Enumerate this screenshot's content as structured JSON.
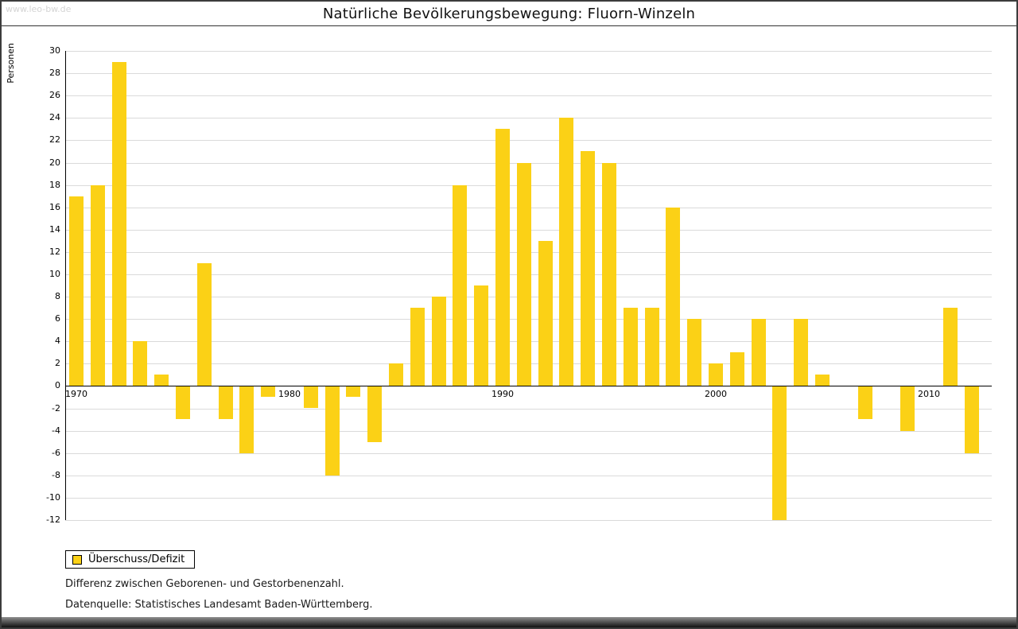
{
  "watermark": "www.leo-bw.de",
  "title": "Natürliche Bevölkerungsbewegung: Fluorn-Winzeln",
  "footnotes": [
    "Differenz zwischen Geborenen- und Gestorbenenzahl.",
    "Datenquelle: Statistisches Landesamt Baden-Württemberg."
  ],
  "chart_data": {
    "type": "bar",
    "title": "Natürliche Bevölkerungsbewegung: Fluorn-Winzeln",
    "xlabel": "",
    "ylabel": "Personen",
    "ylim": [
      -12,
      30
    ],
    "ytick_step": 2,
    "grid": true,
    "bar_color": "#FBD116",
    "categories": [
      1970,
      1971,
      1972,
      1973,
      1974,
      1975,
      1976,
      1977,
      1978,
      1979,
      1980,
      1981,
      1982,
      1983,
      1984,
      1985,
      1986,
      1987,
      1988,
      1989,
      1990,
      1991,
      1992,
      1993,
      1994,
      1995,
      1996,
      1997,
      1998,
      1999,
      2000,
      2001,
      2002,
      2003,
      2004,
      2005,
      2006,
      2007,
      2008,
      2009,
      2010,
      2011,
      2012
    ],
    "values": [
      17,
      18,
      29,
      4,
      1,
      -3,
      11,
      -3,
      -6,
      -1,
      0,
      -2,
      -8,
      -1,
      -5,
      2,
      7,
      8,
      18,
      9,
      23,
      20,
      13,
      24,
      21,
      20,
      7,
      7,
      16,
      6,
      2,
      3,
      6,
      -12,
      6,
      1,
      0,
      -3,
      0,
      -4,
      0,
      7,
      -6
    ],
    "x_axis_labels": [
      1970,
      1980,
      1990,
      2000,
      2010
    ],
    "legend": {
      "position": "bottom-left",
      "entries": [
        {
          "label": "Überschuss/Defizit",
          "color": "#FBD116"
        }
      ]
    }
  }
}
